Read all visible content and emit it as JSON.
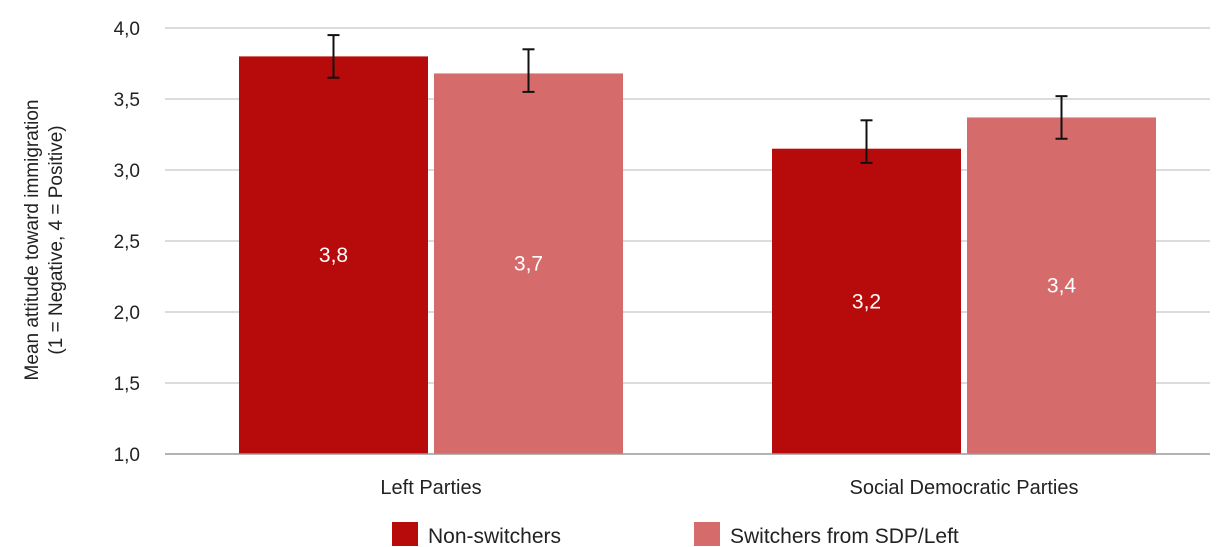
{
  "chart_data": {
    "type": "bar",
    "categories": [
      "Left Parties",
      "Social Democratic Parties"
    ],
    "series": [
      {
        "name": "Non-switchers",
        "color": "#b70b0b",
        "values": [
          3.8,
          3.15
        ],
        "labels": [
          "3,8",
          "3,2"
        ],
        "error_low": [
          3.65,
          3.05
        ],
        "error_high": [
          3.95,
          3.35
        ]
      },
      {
        "name": "Switchers from SDP/Left",
        "color": "#d56b6b",
        "values": [
          3.68,
          3.37
        ],
        "labels": [
          "3,7",
          "3,4"
        ],
        "error_low": [
          3.55,
          3.22
        ],
        "error_high": [
          3.85,
          3.52
        ]
      }
    ],
    "ylabel_lines": [
      "Mean attitude toward immigration",
      "(1 = Negative, 4 = Positive)"
    ],
    "ylim": [
      1.0,
      4.0
    ],
    "yticks": [
      1.0,
      1.5,
      2.0,
      2.5,
      3.0,
      3.5,
      4.0
    ],
    "ytick_labels": [
      "1,0",
      "1,5",
      "2,0",
      "2,5",
      "3,0",
      "3,5",
      "4,0"
    ],
    "grid": true,
    "legend_position": "bottom"
  }
}
